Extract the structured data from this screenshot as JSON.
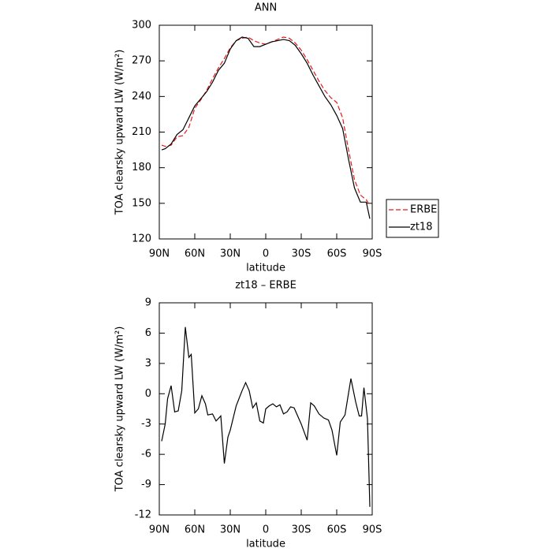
{
  "chart_data": [
    {
      "type": "line",
      "title": "ANN",
      "xlabel": "latitude",
      "ylabel": "TOA clearsky upward LW (W/m²)",
      "x": [
        88,
        85,
        80,
        75,
        70,
        65,
        60,
        55,
        50,
        45,
        40,
        35,
        30,
        25,
        20,
        15,
        10,
        5,
        0,
        -5,
        -10,
        -15,
        -20,
        -25,
        -30,
        -35,
        -40,
        -45,
        -50,
        -55,
        -60,
        -65,
        -70,
        -75,
        -80,
        -85,
        -88
      ],
      "series": [
        {
          "name": "ERBE",
          "color": "#e41a1c",
          "dash": "dashed",
          "values": [
            199,
            198,
            199,
            206,
            207,
            214,
            230,
            237,
            245,
            255,
            264,
            272,
            281,
            287,
            289,
            290,
            287,
            285,
            284,
            286,
            288,
            290,
            289,
            285,
            279,
            271,
            262,
            253,
            245,
            239,
            235,
            222,
            195,
            170,
            157,
            153,
            148
          ]
        },
        {
          "name": "zt18",
          "color": "#000000",
          "dash": "solid",
          "values": [
            195,
            196,
            200,
            208,
            212,
            222,
            232,
            238,
            244,
            252,
            262,
            268,
            280,
            287,
            290,
            289,
            282,
            282,
            284,
            286,
            287,
            288,
            287,
            283,
            276,
            268,
            258,
            249,
            240,
            233,
            224,
            213,
            187,
            163,
            151,
            151,
            137
          ]
        }
      ],
      "xlim": [
        90,
        -90
      ],
      "xticks": [
        {
          "value": 90,
          "label": "90N"
        },
        {
          "value": 60,
          "label": "60N"
        },
        {
          "value": 30,
          "label": "30N"
        },
        0,
        {
          "value": -30,
          "label": "30S"
        },
        {
          "value": -60,
          "label": "60S"
        },
        {
          "value": -90,
          "label": "90S"
        }
      ],
      "ylim": [
        120,
        300
      ],
      "yticks": [
        120,
        150,
        180,
        210,
        240,
        270,
        300
      ],
      "legend": "right"
    },
    {
      "type": "line",
      "title": "zt18 – ERBE",
      "xlabel": "latitude",
      "ylabel": "TOA clearsky upward LW (W/m²)",
      "x": [
        88,
        85,
        83,
        80,
        77,
        74,
        71,
        68,
        65,
        63,
        60,
        57,
        54,
        51,
        49,
        45,
        42,
        38,
        35,
        32,
        30,
        25,
        20,
        17,
        14,
        11,
        8,
        5,
        2,
        0,
        -3,
        -6,
        -9,
        -12,
        -15,
        -18,
        -21,
        -24,
        -27,
        -30,
        -35,
        -38,
        -41,
        -45,
        -49,
        -53,
        -56,
        -60,
        -63,
        -67,
        -72,
        -76,
        -79,
        -81,
        -83,
        -86,
        -88
      ],
      "values": [
        -4.7,
        -3.0,
        -0.5,
        0.8,
        -1.8,
        -1.7,
        0.3,
        6.6,
        3.6,
        3.9,
        -1.9,
        -1.5,
        -0.2,
        -1.0,
        -2.1,
        -2.0,
        -2.7,
        -2.2,
        -6.9,
        -4.3,
        -3.6,
        -1.2,
        0.3,
        1.1,
        0.3,
        -1.4,
        -0.9,
        -2.7,
        -2.9,
        -1.5,
        -1.2,
        -1.0,
        -1.3,
        -1.1,
        -2.0,
        -1.8,
        -1.3,
        -1.4,
        -2.2,
        -3.0,
        -4.6,
        -0.9,
        -1.2,
        -2.0,
        -2.4,
        -2.6,
        -3.6,
        -6.1,
        -2.8,
        -2.1,
        1.5,
        -0.8,
        -2.2,
        -2.2,
        0.6,
        -2.5,
        -11.2
      ],
      "color": "#000000",
      "xlim": [
        90,
        -90
      ],
      "xticks": [
        {
          "value": 90,
          "label": "90N"
        },
        {
          "value": 60,
          "label": "60N"
        },
        {
          "value": 30,
          "label": "30N"
        },
        0,
        {
          "value": -30,
          "label": "30S"
        },
        {
          "value": -60,
          "label": "60S"
        },
        {
          "value": -90,
          "label": "90S"
        }
      ],
      "ylim": [
        -12,
        9
      ],
      "yticks": [
        -12,
        -9,
        -6,
        -3,
        0,
        3,
        6,
        9
      ]
    }
  ]
}
